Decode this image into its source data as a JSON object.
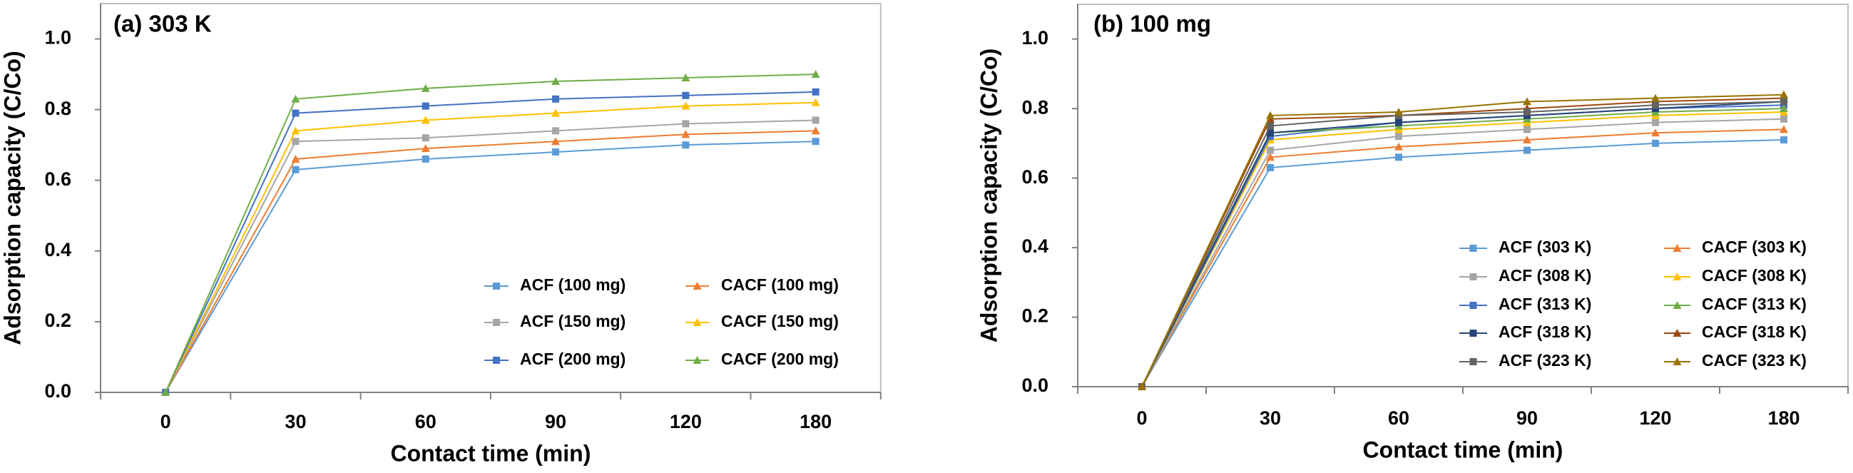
{
  "chart_data": [
    {
      "type": "line",
      "title": "(a) 303 K",
      "x_label": "Contact time (min)",
      "y_label": "Adsorption capacity (C/Co)",
      "categories": [
        "0",
        "30",
        "60",
        "90",
        "120",
        "180"
      ],
      "ylim": [
        0,
        1.1
      ],
      "yticks": [
        {
          "value": 0,
          "label": "0.0"
        },
        0.2,
        0.4,
        0.6,
        0.8,
        {
          "value": 1,
          "label": "1.0"
        }
      ],
      "grid": false,
      "series": [
        {
          "name": "ACF (100 mg)",
          "color": "#5b9bd5",
          "marker": "square",
          "values": [
            0,
            0.63,
            0.66,
            0.68,
            0.7,
            0.71
          ]
        },
        {
          "name": "CACF (100 mg)",
          "color": "#ed7d31",
          "marker": "triangle",
          "values": [
            0,
            0.66,
            0.69,
            0.71,
            0.73,
            0.74
          ]
        },
        {
          "name": "ACF (150 mg)",
          "color": "#a5a5a5",
          "marker": "square",
          "values": [
            0,
            0.71,
            0.72,
            0.74,
            0.76,
            0.77
          ]
        },
        {
          "name": "CACF (150 mg)",
          "color": "#ffc000",
          "marker": "triangle",
          "values": [
            0,
            0.74,
            0.77,
            0.79,
            0.81,
            0.82
          ]
        },
        {
          "name": "ACF (200 mg)",
          "color": "#4472c4",
          "marker": "square",
          "values": [
            0,
            0.79,
            0.81,
            0.83,
            0.84,
            0.85
          ]
        },
        {
          "name": "CACF (200 mg)",
          "color": "#70ad47",
          "marker": "triangle",
          "values": [
            0,
            0.83,
            0.86,
            0.88,
            0.89,
            0.9
          ]
        }
      ]
    },
    {
      "type": "line",
      "title": "(b) 100 mg",
      "x_label": "Contact time (min)",
      "y_label": "Adsorption capacity (C/Co)",
      "categories": [
        "0",
        "30",
        "60",
        "90",
        "120",
        "180"
      ],
      "ylim": [
        0,
        1.1
      ],
      "yticks": [
        {
          "value": 0,
          "label": "0.0"
        },
        0.2,
        0.4,
        0.6,
        0.8,
        {
          "value": 1,
          "label": "1.0"
        }
      ],
      "grid": false,
      "series": [
        {
          "name": "ACF (303 K)",
          "color": "#5b9bd5",
          "marker": "square",
          "values": [
            0,
            0.63,
            0.66,
            0.68,
            0.7,
            0.71
          ]
        },
        {
          "name": "CACF (303 K)",
          "color": "#ed7d31",
          "marker": "triangle",
          "values": [
            0,
            0.66,
            0.69,
            0.71,
            0.73,
            0.74
          ]
        },
        {
          "name": "ACF (308 K)",
          "color": "#a5a5a5",
          "marker": "square",
          "values": [
            0,
            0.68,
            0.72,
            0.74,
            0.76,
            0.77
          ]
        },
        {
          "name": "CACF (308 K)",
          "color": "#ffc000",
          "marker": "triangle",
          "values": [
            0,
            0.71,
            0.74,
            0.76,
            0.78,
            0.79
          ]
        },
        {
          "name": "ACF (313 K)",
          "color": "#4472c4",
          "marker": "square",
          "values": [
            0,
            0.72,
            0.76,
            0.78,
            0.8,
            0.81
          ]
        },
        {
          "name": "CACF (313 K)",
          "color": "#70ad47",
          "marker": "triangle",
          "values": [
            0,
            0.73,
            0.75,
            0.77,
            0.79,
            0.8
          ]
        },
        {
          "name": "ACF (318 K)",
          "color": "#264478",
          "marker": "square",
          "values": [
            0,
            0.73,
            0.76,
            0.78,
            0.8,
            0.82
          ]
        },
        {
          "name": "CACF (318 K)",
          "color": "#9e480e",
          "marker": "triangle",
          "values": [
            0,
            0.77,
            0.78,
            0.8,
            0.82,
            0.83
          ]
        },
        {
          "name": "ACF (323 K)",
          "color": "#636363",
          "marker": "square",
          "values": [
            0,
            0.75,
            0.78,
            0.79,
            0.81,
            0.82
          ]
        },
        {
          "name": "CACF (323 K)",
          "color": "#997300",
          "marker": "triangle",
          "values": [
            0,
            0.78,
            0.79,
            0.82,
            0.83,
            0.84
          ]
        }
      ]
    }
  ]
}
